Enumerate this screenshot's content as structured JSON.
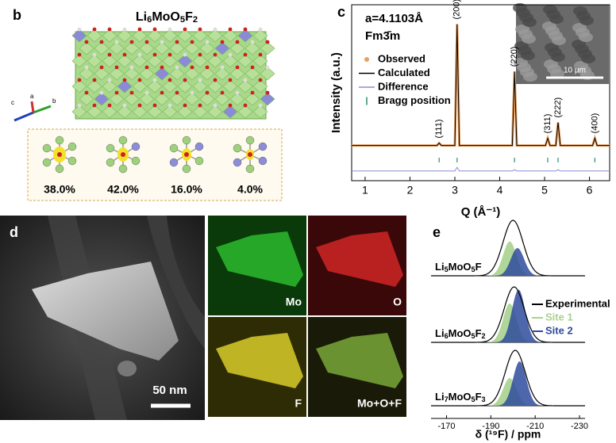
{
  "panels": {
    "b": {
      "label": "b",
      "title": "Li6MoO5F2",
      "axes": [
        "c",
        "a",
        "b"
      ],
      "fractions": [
        "38.0%",
        "42.0%",
        "16.0%",
        "4.0%"
      ]
    },
    "d": {
      "label": "d",
      "scale_bar": "50 nm",
      "maps": [
        "Mo",
        "O",
        "F",
        "Mo+O+F"
      ]
    }
  },
  "chart_data": [
    {
      "type": "line",
      "panel_label": "c",
      "lattice": "a=4.1103Å",
      "space_group": "Fm3̄m",
      "xlabel": "Q (Å⁻¹)",
      "ylabel": "Intensity (a.u.)",
      "inset_scale_bar": "10 μm",
      "xlim": [
        0.7,
        6.45
      ],
      "xticks": [
        1,
        2,
        3,
        4,
        5,
        6
      ],
      "ylim": [
        -29,
        116
      ],
      "x": [
        0.7,
        2.6,
        2.65,
        2.7,
        3.0,
        3.05,
        3.1,
        4.28,
        4.33,
        4.38,
        5.02,
        5.07,
        5.12,
        5.25,
        5.3,
        5.35,
        6.07,
        6.12,
        6.17,
        6.45
      ],
      "series": [
        {
          "name": "Observed",
          "color": "#e8a060",
          "values": [
            0,
            0,
            2,
            0,
            0,
            100,
            0,
            0,
            61,
            0,
            0,
            6,
            0,
            0,
            19,
            0,
            0,
            6,
            0,
            0
          ]
        },
        {
          "name": "Calculated",
          "color": "#000000",
          "values": [
            0,
            0,
            2,
            0,
            0,
            100,
            0,
            0,
            61,
            0,
            0,
            6,
            0,
            0,
            19,
            0,
            0,
            6,
            0,
            0
          ]
        },
        {
          "name": "Difference",
          "color": "#8c8cd8",
          "values": [
            -21,
            -21,
            -21,
            -21,
            -21,
            -18,
            -21,
            -21,
            -20,
            -21,
            -21,
            -21,
            -21,
            -21,
            -20,
            -21,
            -21,
            -21,
            -21,
            -21
          ]
        }
      ],
      "bragg": {
        "name": "Bragg position",
        "color": "#2e8b74",
        "x": [
          2.65,
          3.05,
          4.33,
          5.07,
          5.3,
          6.12
        ],
        "y": -12
      },
      "peak_labels": [
        {
          "label": "(111)",
          "x": 2.65,
          "y": 2
        },
        {
          "label": "(200)",
          "x": 3.05,
          "y": 100
        },
        {
          "label": "(220)",
          "x": 4.33,
          "y": 61
        },
        {
          "label": "(311)",
          "x": 5.07,
          "y": 6
        },
        {
          "label": "(222)",
          "x": 5.3,
          "y": 19
        },
        {
          "label": "(400)",
          "x": 6.12,
          "y": 6
        }
      ]
    },
    {
      "type": "line",
      "panel_label": "e",
      "xlabel": "δ (¹⁹F) / ppm",
      "xlim": [
        -163,
        -232.5
      ],
      "xticks": [
        -170,
        -190,
        -210,
        -230
      ],
      "series": [
        {
          "name": "Experimental",
          "color": "#000000"
        },
        {
          "name": "Site 1",
          "color": "#a9d18e"
        },
        {
          "name": "Site 2",
          "color": "#2f4b9c"
        }
      ],
      "spectra": [
        {
          "label": "Li5MoO5F",
          "peaks": [
            {
              "center": -200,
              "width": 4.5,
              "height": 1
            },
            {
              "center": -198.5,
              "width": 3,
              "height": 0.62
            },
            {
              "center": -202,
              "width": 3,
              "height": 0.5
            }
          ]
        },
        {
          "label": "Li6MoO5F2",
          "peaks": [
            {
              "center": -200.5,
              "width": 4.5,
              "height": 1
            },
            {
              "center": -198.5,
              "width": 3,
              "height": 0.7
            },
            {
              "center": -202.5,
              "width": 3,
              "height": 0.95
            }
          ]
        },
        {
          "label": "Li7MoO5F3",
          "peaks": [
            {
              "center": -201,
              "width": 4.5,
              "height": 1
            },
            {
              "center": -198.5,
              "width": 3,
              "height": 0.5
            },
            {
              "center": -203,
              "width": 3,
              "height": 0.8
            }
          ]
        }
      ]
    }
  ]
}
